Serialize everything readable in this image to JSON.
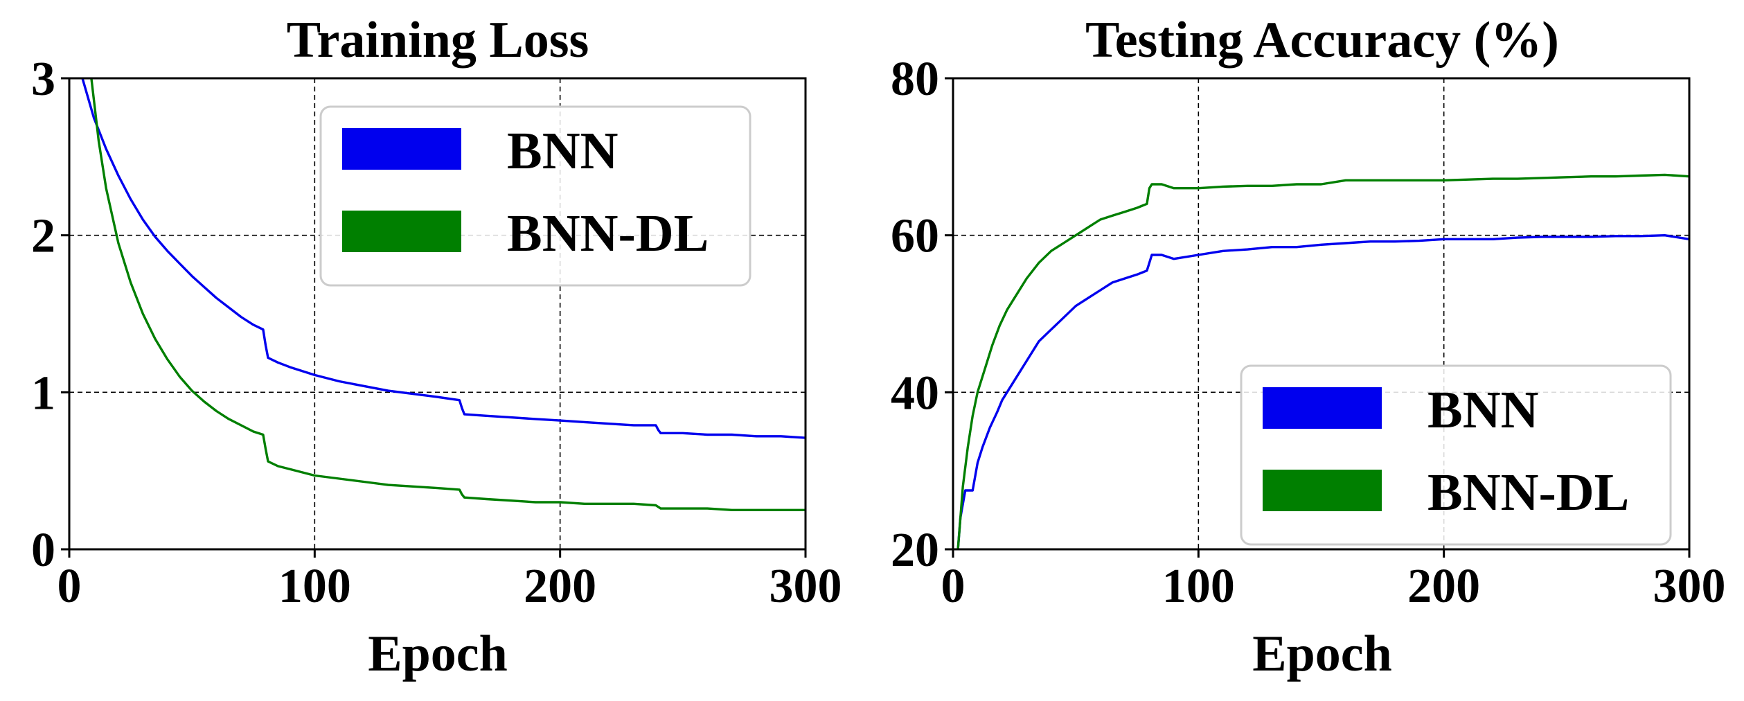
{
  "colors": {
    "bnn": "#0000ee",
    "bnn_dl": "#007f00"
  },
  "chart_data": [
    {
      "type": "line",
      "title": "Training Loss",
      "xlabel": "Epoch",
      "ylabel": "",
      "xlim": [
        0,
        300
      ],
      "ylim": [
        0,
        3
      ],
      "xticks": [
        0,
        100,
        200,
        300
      ],
      "yticks": [
        0,
        1,
        2,
        3
      ],
      "grid": true,
      "legend": "top-right",
      "series": [
        {
          "name": "BNN",
          "color": "#0000ee",
          "x": [
            5,
            10,
            15,
            20,
            25,
            30,
            35,
            40,
            45,
            50,
            55,
            60,
            65,
            70,
            75,
            79,
            80,
            81,
            85,
            90,
            100,
            110,
            120,
            130,
            140,
            150,
            159,
            160,
            161,
            170,
            180,
            190,
            200,
            210,
            220,
            230,
            239,
            240,
            241,
            250,
            260,
            270,
            280,
            290,
            300
          ],
          "y": [
            3.02,
            2.75,
            2.55,
            2.38,
            2.23,
            2.1,
            1.99,
            1.9,
            1.82,
            1.74,
            1.67,
            1.6,
            1.54,
            1.48,
            1.43,
            1.4,
            1.3,
            1.22,
            1.19,
            1.16,
            1.11,
            1.07,
            1.04,
            1.01,
            0.99,
            0.97,
            0.95,
            0.9,
            0.86,
            0.85,
            0.84,
            0.83,
            0.82,
            0.81,
            0.8,
            0.79,
            0.79,
            0.76,
            0.74,
            0.74,
            0.73,
            0.73,
            0.72,
            0.72,
            0.71
          ]
        },
        {
          "name": "BNN-DL",
          "color": "#007f00",
          "x": [
            9,
            12,
            15,
            20,
            25,
            30,
            35,
            40,
            45,
            50,
            55,
            60,
            65,
            70,
            75,
            79,
            80,
            81,
            85,
            90,
            100,
            110,
            120,
            130,
            140,
            150,
            159,
            160,
            161,
            170,
            180,
            190,
            200,
            210,
            220,
            230,
            239,
            240,
            241,
            250,
            260,
            270,
            280,
            290,
            300
          ],
          "y": [
            3.0,
            2.6,
            2.3,
            1.95,
            1.7,
            1.5,
            1.34,
            1.21,
            1.1,
            1.01,
            0.94,
            0.88,
            0.83,
            0.79,
            0.75,
            0.73,
            0.64,
            0.56,
            0.53,
            0.51,
            0.47,
            0.45,
            0.43,
            0.41,
            0.4,
            0.39,
            0.38,
            0.35,
            0.33,
            0.32,
            0.31,
            0.3,
            0.3,
            0.29,
            0.29,
            0.29,
            0.28,
            0.27,
            0.26,
            0.26,
            0.26,
            0.25,
            0.25,
            0.25,
            0.25
          ]
        }
      ]
    },
    {
      "type": "line",
      "title": "Testing Accuracy (%)",
      "xlabel": "Epoch",
      "ylabel": "",
      "xlim": [
        0,
        300
      ],
      "ylim": [
        20,
        80
      ],
      "xticks": [
        0,
        100,
        200,
        300
      ],
      "yticks": [
        20,
        40,
        60,
        80
      ],
      "grid": true,
      "legend": "bottom-right",
      "series": [
        {
          "name": "BNN",
          "color": "#0000ee",
          "x": [
            2,
            3,
            5,
            8,
            10,
            12,
            15,
            18,
            20,
            25,
            30,
            35,
            40,
            45,
            50,
            55,
            60,
            65,
            70,
            75,
            79,
            80,
            81,
            85,
            90,
            100,
            110,
            120,
            130,
            140,
            150,
            160,
            170,
            180,
            190,
            200,
            210,
            220,
            230,
            240,
            250,
            260,
            270,
            280,
            290,
            300
          ],
          "y": [
            20,
            24,
            27.5,
            27.5,
            31,
            33,
            35.5,
            37.5,
            39,
            41.5,
            44,
            46.5,
            48,
            49.5,
            51,
            52,
            53,
            54,
            54.5,
            55,
            55.5,
            56.5,
            57.5,
            57.5,
            57,
            57.5,
            58,
            58.2,
            58.5,
            58.5,
            58.8,
            59,
            59.2,
            59.2,
            59.3,
            59.5,
            59.5,
            59.5,
            59.7,
            59.8,
            59.8,
            59.8,
            59.9,
            59.9,
            60,
            59.5
          ]
        },
        {
          "name": "BNN-DL",
          "color": "#007f00",
          "x": [
            2,
            4,
            6,
            8,
            10,
            13,
            16,
            19,
            22,
            25,
            30,
            35,
            40,
            45,
            50,
            55,
            60,
            65,
            70,
            75,
            79,
            80,
            81,
            85,
            90,
            100,
            110,
            120,
            130,
            140,
            150,
            160,
            170,
            180,
            190,
            200,
            210,
            220,
            230,
            240,
            250,
            260,
            270,
            280,
            290,
            300
          ],
          "y": [
            20,
            28,
            33,
            37,
            40,
            43,
            46,
            48.5,
            50.5,
            52,
            54.5,
            56.5,
            58,
            59,
            60,
            61,
            62,
            62.5,
            63,
            63.5,
            64,
            66,
            66.5,
            66.5,
            66,
            66,
            66.2,
            66.3,
            66.3,
            66.5,
            66.5,
            67,
            67,
            67,
            67,
            67,
            67.1,
            67.2,
            67.2,
            67.3,
            67.4,
            67.5,
            67.5,
            67.6,
            67.7,
            67.5
          ]
        }
      ]
    }
  ]
}
